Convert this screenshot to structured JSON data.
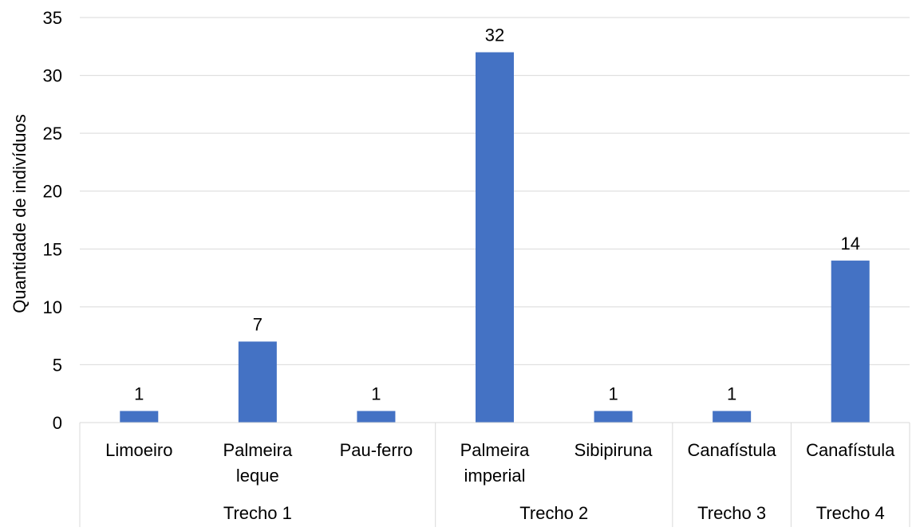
{
  "chart_data": {
    "type": "bar",
    "title": "",
    "xlabel": "",
    "ylabel": "Quantidade de indivíduos",
    "ylim": [
      0,
      35
    ],
    "yticks": [
      0,
      5,
      10,
      15,
      20,
      25,
      30,
      35
    ],
    "grid": true,
    "legend": "none",
    "bar_color": "#4472C4",
    "categories": [
      [
        "Limoeiro"
      ],
      [
        "Palmeira",
        "leque"
      ],
      [
        "Pau-ferro"
      ],
      [
        "Palmeira",
        "imperial"
      ],
      [
        "Sibipiruna"
      ],
      [
        "Canafístula"
      ],
      [
        "Canafístula"
      ]
    ],
    "values": [
      1,
      7,
      1,
      32,
      1,
      1,
      14
    ],
    "data_labels": [
      "1",
      "7",
      "1",
      "32",
      "1",
      "1",
      "14"
    ],
    "groups": [
      {
        "label": "Trecho 1",
        "count": 3
      },
      {
        "label": "Trecho 2",
        "count": 2
      },
      {
        "label": "Trecho 3",
        "count": 1
      },
      {
        "label": "Trecho 4",
        "count": 1
      }
    ]
  }
}
